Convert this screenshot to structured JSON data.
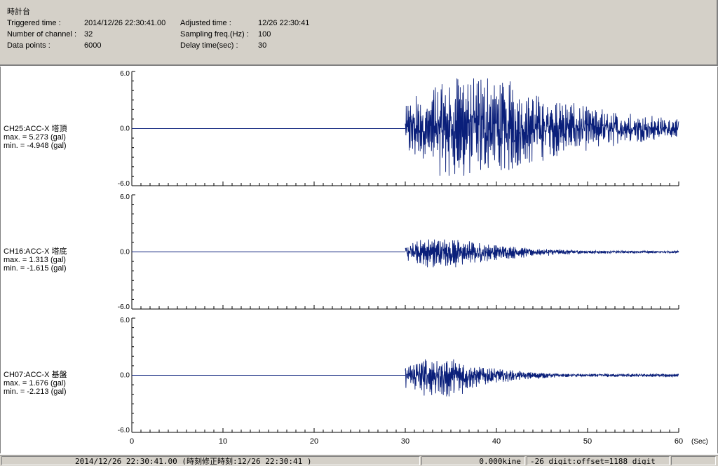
{
  "header": {
    "title": "時計台",
    "triggered_label": "Triggered time :",
    "triggered_value": "2014/12/26 22:30:41.00",
    "channels_label": "Number of channel :",
    "channels_value": "32",
    "points_label": "Data points :",
    "points_value": "6000",
    "adjusted_label": "Adjusted time :",
    "adjusted_value": "12/26 22:30:41",
    "sampling_label": "Sampling freq.(Hz) :",
    "sampling_value": "100",
    "delay_label": "Delay time(sec) :",
    "delay_value": "30"
  },
  "chart_data": [
    {
      "type": "line",
      "channel": "CH25:ACC-X 塔頂",
      "max_text": "max. = 5.273 (gal)",
      "min_text": "min. = -4.948 (gal)",
      "max": 5.273,
      "min": -4.948,
      "yticks": [
        "6.0",
        "0.0",
        "-6.0"
      ],
      "ylim": [
        -6,
        6
      ],
      "xlim": [
        0,
        60
      ],
      "onset_sec": 30,
      "decay_sec": 12,
      "line_color": "#0a1f7a"
    },
    {
      "type": "line",
      "channel": "CH16:ACC-X 塔底",
      "max_text": "max. = 1.313 (gal)",
      "min_text": "min. = -1.615 (gal)",
      "max": 1.313,
      "min": -1.615,
      "yticks": [
        "6.0",
        "0.0",
        "-6.0"
      ],
      "ylim": [
        -6,
        6
      ],
      "xlim": [
        0,
        60
      ],
      "onset_sec": 30,
      "decay_sec": 7,
      "line_color": "#0a1f7a"
    },
    {
      "type": "line",
      "channel": "CH07:ACC-X 基盤",
      "max_text": "max. = 1.676 (gal)",
      "min_text": "min. = -2.213 (gal)",
      "max": 1.676,
      "min": -2.213,
      "yticks": [
        "6.0",
        "0.0",
        "-6.0"
      ],
      "ylim": [
        -6,
        6
      ],
      "xlim": [
        0,
        60
      ],
      "onset_sec": 30,
      "decay_sec": 5,
      "line_color": "#0a1f7a"
    }
  ],
  "xaxis": {
    "ticks": [
      "0",
      "10",
      "20",
      "30",
      "40",
      "50",
      "60"
    ],
    "unit": "(Sec)"
  },
  "status": {
    "time": "2014/12/26 22:30:41.00  (時刻修正時刻:12/26 22:30:41  )",
    "velocity": "0.000kine",
    "offset": "-26 digit:offset=1188 digit"
  }
}
